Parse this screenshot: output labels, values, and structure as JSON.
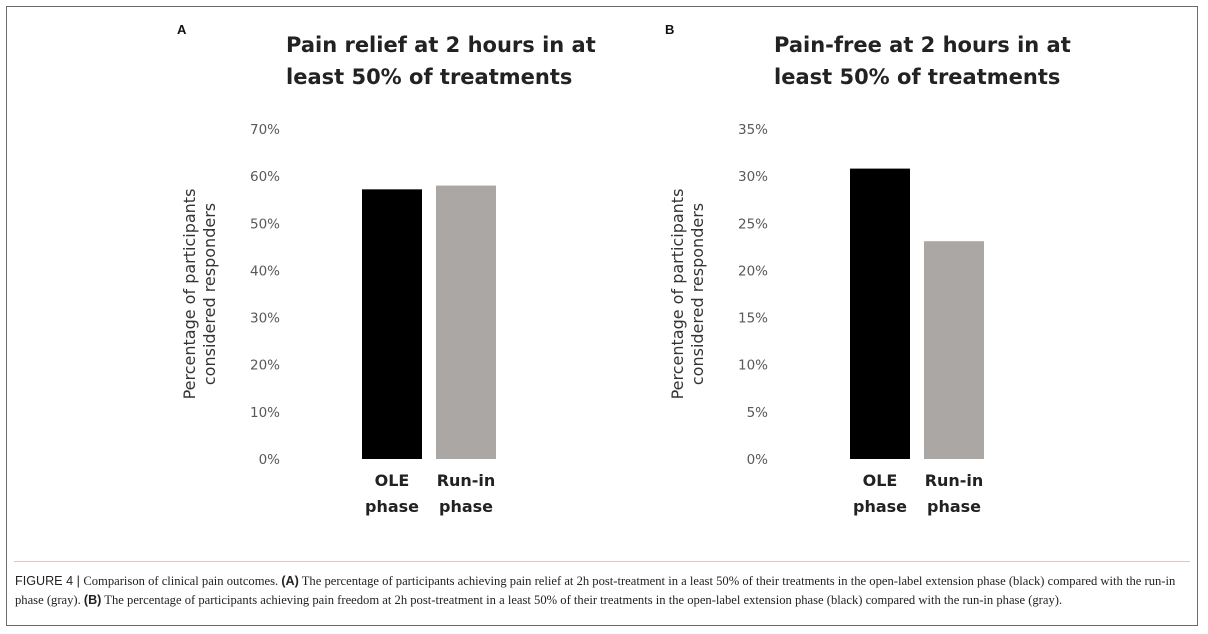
{
  "chart_data": [
    {
      "panel": "A",
      "type": "bar",
      "title_lines": [
        "Pain relief at 2 hours in at",
        "least 50% of treatments"
      ],
      "ylabel_lines": [
        "Percentage of participants",
        "considered responders"
      ],
      "categories": [
        [
          "OLE",
          "phase"
        ],
        [
          "Run-in",
          "phase"
        ]
      ],
      "values": [
        57.2,
        58.0
      ],
      "colors": [
        "#000000",
        "#aaa7a4"
      ],
      "yticks": [
        "0%",
        "10%",
        "20%",
        "30%",
        "40%",
        "50%",
        "60%",
        "70%"
      ],
      "ylim": [
        0,
        70
      ],
      "grid": false
    },
    {
      "panel": "B",
      "type": "bar",
      "title_lines": [
        "Pain-free at 2 hours in at",
        "least 50% of treatments"
      ],
      "ylabel_lines": [
        "Percentage of participants",
        "considered responders"
      ],
      "categories": [
        [
          "OLE",
          "phase"
        ],
        [
          "Run-in",
          "phase"
        ]
      ],
      "values": [
        30.8,
        23.1
      ],
      "colors": [
        "#000000",
        "#aaa7a4"
      ],
      "yticks": [
        "0%",
        "5%",
        "10%",
        "15%",
        "20%",
        "25%",
        "30%",
        "35%"
      ],
      "ylim": [
        0,
        35
      ],
      "grid": false
    }
  ],
  "caption": {
    "figure_label": "FIGURE 4 | ",
    "intro": "Comparison of clinical pain outcomes. ",
    "a_tag": "(A)",
    "a_text": " The percentage of participants achieving pain relief at 2h post-treatment in a least 50% of their treatments in the open-label extension phase (black) compared with the run-in phase (gray). ",
    "b_tag": "(B)",
    "b_text": " The percentage of participants achieving pain freedom at 2h post-treatment in a least 50% of their treatments in the open-label extension phase (black) compared with the run-in phase (gray)."
  }
}
